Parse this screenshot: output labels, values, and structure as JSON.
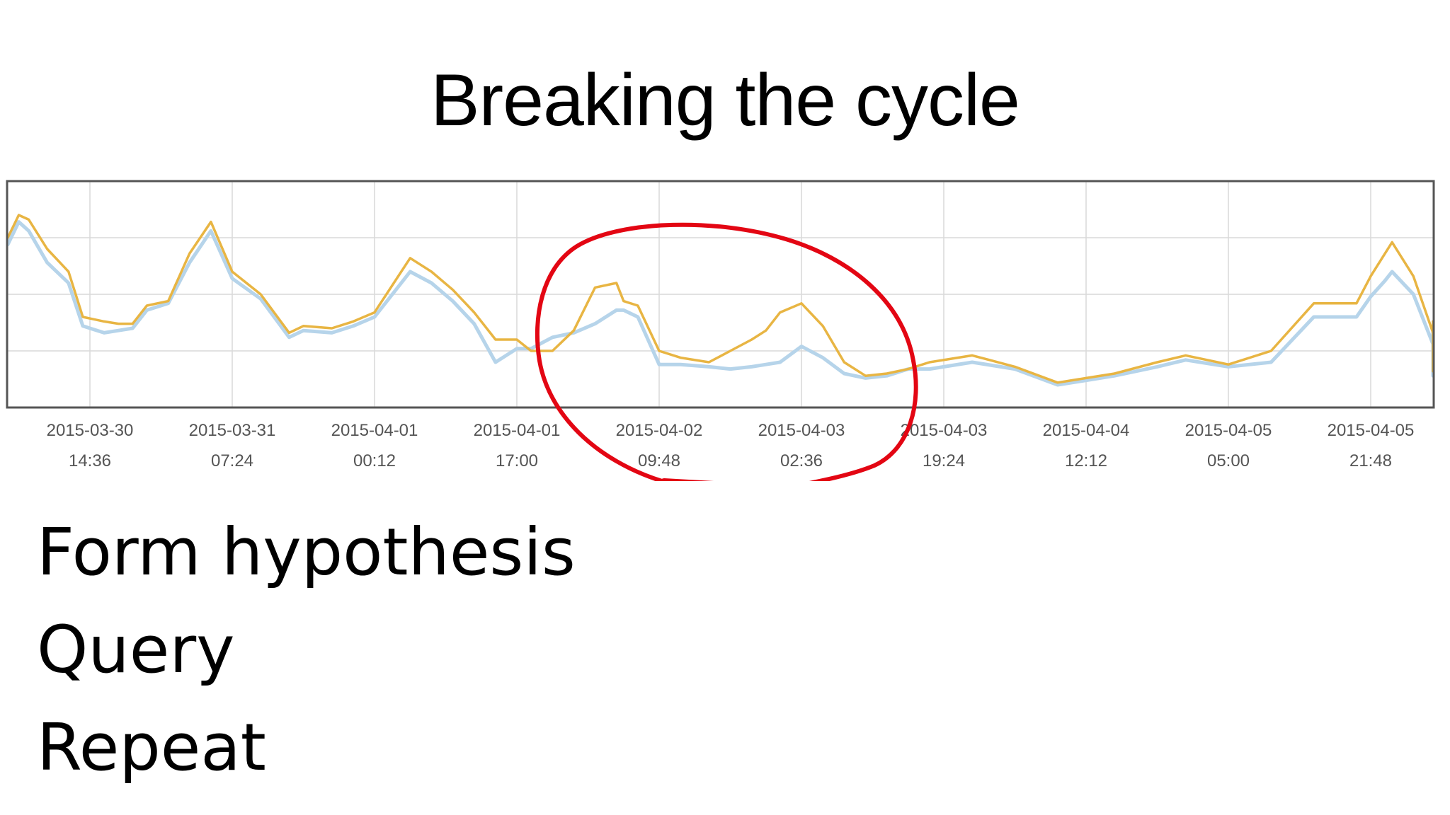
{
  "slide": {
    "title": "Breaking the cycle",
    "bullets": [
      "Form hypothesis",
      "Query",
      "Repeat"
    ]
  },
  "colors": {
    "series_orange": "#e8b543",
    "series_blue": "#b6d4ea",
    "annotation_circle": "#e30613",
    "gridline": "#d9d9d9",
    "frame": "#555555"
  },
  "chart_data": {
    "type": "line",
    "title": "",
    "xlabel": "",
    "ylabel": "",
    "grid": true,
    "x_tick_labels": [
      [
        "2015-03-30",
        "14:36"
      ],
      [
        "2015-03-31",
        "07:24"
      ],
      [
        "2015-04-01",
        "00:12"
      ],
      [
        "2015-04-01",
        "17:00"
      ],
      [
        "2015-04-02",
        "09:48"
      ],
      [
        "2015-04-03",
        "02:36"
      ],
      [
        "2015-04-03",
        "19:24"
      ],
      [
        "2015-04-04",
        "12:12"
      ],
      [
        "2015-04-05",
        "05:00"
      ],
      [
        "2015-04-05",
        "21:48"
      ]
    ],
    "x_axis_note": "x values are tick positions (0 = 2015-03-30 14:36, 1 = 2015-03-31 07:24, ...; 16 h 48 min per tick)",
    "ylim": [
      0,
      1
    ],
    "y_axis_note": "no y-axis tick labels shown; y values are estimated relative levels (0 = bottom, 1 = top)",
    "series": [
      {
        "color": "#e8b543",
        "x": [
          -0.58,
          -0.5,
          -0.43,
          -0.3,
          -0.15,
          -0.05,
          0.1,
          0.2,
          0.3,
          0.4,
          0.55,
          0.7,
          0.85,
          1.0,
          1.2,
          1.4,
          1.5,
          1.7,
          1.85,
          2.0,
          2.25,
          2.4,
          2.55,
          2.7,
          2.85,
          3.0,
          3.1,
          3.25,
          3.4,
          3.55,
          3.7,
          3.75,
          3.85,
          4.0,
          4.15,
          4.35,
          4.5,
          4.65,
          4.75,
          4.85,
          5.0,
          5.15,
          5.3,
          5.45,
          5.6,
          5.75,
          5.9,
          6.2,
          6.5,
          6.8,
          7.0,
          7.2,
          7.5,
          7.7,
          8.0,
          8.3,
          8.6,
          8.9,
          9.0,
          9.1,
          9.15,
          9.3,
          9.45,
          9.55,
          9.62
        ],
        "y": [
          0.75,
          0.85,
          0.83,
          0.7,
          0.6,
          0.4,
          0.38,
          0.37,
          0.37,
          0.45,
          0.47,
          0.68,
          0.82,
          0.6,
          0.5,
          0.33,
          0.36,
          0.35,
          0.38,
          0.42,
          0.66,
          0.6,
          0.52,
          0.42,
          0.3,
          0.3,
          0.25,
          0.25,
          0.34,
          0.53,
          0.55,
          0.47,
          0.45,
          0.25,
          0.22,
          0.2,
          0.25,
          0.3,
          0.34,
          0.42,
          0.46,
          0.36,
          0.2,
          0.14,
          0.15,
          0.17,
          0.2,
          0.23,
          0.18,
          0.11,
          0.13,
          0.15,
          0.2,
          0.23,
          0.19,
          0.25,
          0.46,
          0.46,
          0.58,
          0.68,
          0.73,
          0.58,
          0.33,
          0.38,
          0.16
        ]
      },
      {
        "color": "#b6d4ea",
        "x": [
          -0.58,
          -0.5,
          -0.43,
          -0.3,
          -0.15,
          -0.05,
          0.1,
          0.2,
          0.3,
          0.4,
          0.55,
          0.7,
          0.85,
          1.0,
          1.2,
          1.4,
          1.5,
          1.7,
          1.85,
          2.0,
          2.25,
          2.4,
          2.55,
          2.7,
          2.85,
          3.0,
          3.1,
          3.25,
          3.4,
          3.55,
          3.7,
          3.75,
          3.85,
          4.0,
          4.15,
          4.35,
          4.5,
          4.65,
          4.75,
          4.85,
          5.0,
          5.15,
          5.3,
          5.45,
          5.6,
          5.75,
          5.9,
          6.2,
          6.5,
          6.8,
          7.0,
          7.2,
          7.5,
          7.7,
          8.0,
          8.3,
          8.6,
          8.9,
          9.0,
          9.1,
          9.15,
          9.3,
          9.45,
          9.55,
          9.62
        ],
        "y": [
          0.72,
          0.82,
          0.78,
          0.64,
          0.55,
          0.36,
          0.33,
          0.34,
          0.35,
          0.43,
          0.46,
          0.64,
          0.78,
          0.57,
          0.48,
          0.31,
          0.34,
          0.33,
          0.36,
          0.4,
          0.6,
          0.55,
          0.47,
          0.37,
          0.2,
          0.26,
          0.26,
          0.31,
          0.33,
          0.37,
          0.43,
          0.43,
          0.4,
          0.19,
          0.19,
          0.18,
          0.17,
          0.18,
          0.19,
          0.2,
          0.27,
          0.22,
          0.15,
          0.13,
          0.14,
          0.17,
          0.17,
          0.2,
          0.17,
          0.1,
          0.12,
          0.14,
          0.18,
          0.21,
          0.18,
          0.2,
          0.4,
          0.4,
          0.49,
          0.56,
          0.6,
          0.5,
          0.28,
          0.36,
          0.14
        ]
      }
    ],
    "annotation": {
      "type": "hand-drawn circle",
      "color": "#e30613",
      "x_range": [
        3.1,
        5.6
      ]
    }
  }
}
